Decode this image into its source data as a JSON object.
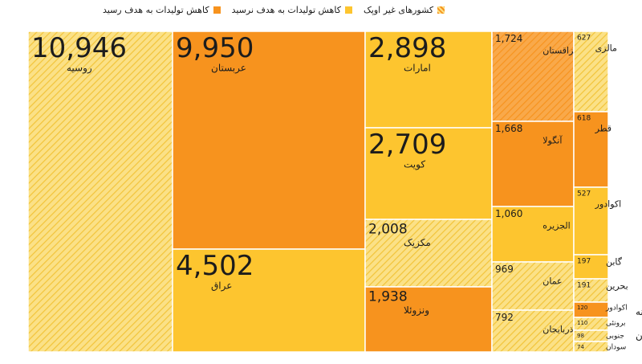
{
  "colors": {
    "target_met": "#f7931e",
    "target_not_met": "#fdc52f",
    "non_opec_base": "#fbe187",
    "non_opec_stripe": "#f2c43a",
    "non_opec_met_base": "#f9a94a",
    "non_opec_met_stripe": "#f7931e"
  },
  "legend": [
    {
      "label": "کاهش تولیدات به هدف رسید",
      "kind": "target_met"
    },
    {
      "label": "کاهش تولیدات به هدف نرسید",
      "kind": "target_not_met"
    },
    {
      "label": "کشورهای غیر اوپک",
      "kind": "non_opec"
    }
  ],
  "chart_data": {
    "type": "treemap",
    "cells": [
      {
        "name": "روسیه",
        "value": "10,946",
        "kind": "non_opec"
      },
      {
        "name": "عربستان",
        "value": "9,950",
        "kind": "target_met"
      },
      {
        "name": "عراق",
        "value": "4,502",
        "kind": "target_not_met"
      },
      {
        "name": "امارات",
        "value": "2,898",
        "kind": "target_not_met"
      },
      {
        "name": "کویت",
        "value": "2,709",
        "kind": "target_not_met"
      },
      {
        "name": "مکزیک",
        "value": "2,008",
        "kind": "non_opec"
      },
      {
        "name": "ونزوئلا",
        "value": "1,938",
        "kind": "target_met"
      },
      {
        "name": "قزاقستان",
        "value": "1,724",
        "kind": "non_opec_met"
      },
      {
        "name": "آنگولا",
        "value": "1,668",
        "kind": "target_met"
      },
      {
        "name": "الجزیره",
        "value": "1,060",
        "kind": "target_not_met"
      },
      {
        "name": "عمان",
        "value": "969",
        "kind": "non_opec"
      },
      {
        "name": "آذربایجان",
        "value": "792",
        "kind": "non_opec"
      },
      {
        "name": "مالزی",
        "value": "627",
        "kind": "non_opec"
      },
      {
        "name": "قطر",
        "value": "618",
        "kind": "target_met"
      },
      {
        "name": "اکوادور",
        "value": "527",
        "kind": "target_not_met"
      },
      {
        "name": "گابن",
        "value": "197",
        "kind": "target_not_met"
      },
      {
        "name": "بحرین",
        "value": "191",
        "kind": "non_opec"
      },
      {
        "name": "اکوادور",
        "value": "120",
        "kind": "target_met",
        "outside_label": "گینه"
      },
      {
        "name": "برونئی",
        "value": "110",
        "kind": "non_opec"
      },
      {
        "name": "جنوبی",
        "value": "98",
        "kind": "non_opec",
        "outside_label": "سودان"
      },
      {
        "name": "سودان",
        "value": "74",
        "kind": "non_opec"
      }
    ]
  }
}
